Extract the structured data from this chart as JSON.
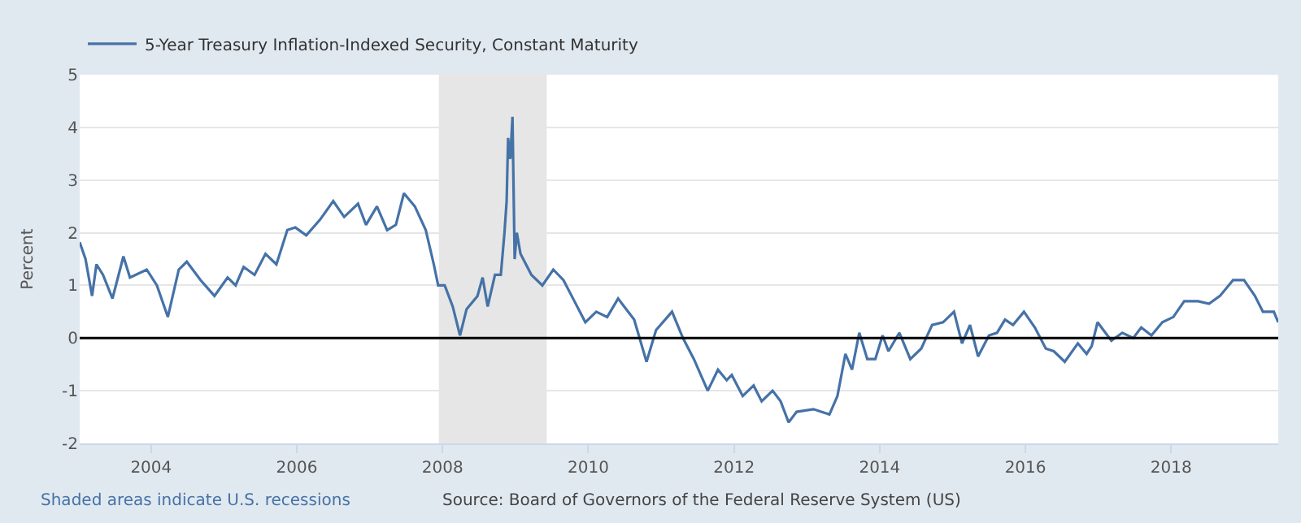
{
  "chart_data": {
    "type": "line",
    "ylabel": "Percent",
    "x": [
      2003.02,
      2003.1,
      2003.19,
      2003.25,
      2003.34,
      2003.47,
      2003.62,
      2003.71,
      2003.94,
      2004.08,
      2004.23,
      2004.38,
      2004.49,
      2004.68,
      2004.87,
      2005.05,
      2005.16,
      2005.27,
      2005.42,
      2005.57,
      2005.72,
      2005.87,
      2005.98,
      2006.13,
      2006.32,
      2006.5,
      2006.65,
      2006.84,
      2006.95,
      2007.1,
      2007.24,
      2007.36,
      2007.47,
      2007.62,
      2007.77,
      2007.88,
      2007.94,
      2008.03,
      2008.14,
      2008.24,
      2008.33,
      2008.48,
      2008.55,
      2008.62,
      2008.72,
      2008.8,
      2008.85,
      2008.88,
      2008.9,
      2008.93,
      2008.96,
      2008.99,
      2009.02,
      2009.07,
      2009.22,
      2009.37,
      2009.52,
      2009.66,
      2009.81,
      2009.96,
      2010.11,
      2010.26,
      2010.41,
      2010.63,
      2010.8,
      2010.93,
      2011.15,
      2011.3,
      2011.45,
      2011.64,
      2011.78,
      2011.9,
      2011.97,
      2012.12,
      2012.27,
      2012.38,
      2012.53,
      2012.64,
      2012.75,
      2012.86,
      2013.09,
      2013.31,
      2013.42,
      2013.53,
      2013.62,
      2013.72,
      2013.83,
      2013.94,
      2014.04,
      2014.12,
      2014.27,
      2014.42,
      2014.57,
      2014.72,
      2014.87,
      2015.02,
      2015.13,
      2015.24,
      2015.35,
      2015.5,
      2015.61,
      2015.72,
      2015.83,
      2015.98,
      2016.13,
      2016.28,
      2016.39,
      2016.54,
      2016.72,
      2016.84,
      2016.91,
      2016.99,
      2017.18,
      2017.33,
      2017.48,
      2017.59,
      2017.73,
      2017.88,
      2018.03,
      2018.18,
      2018.37,
      2018.52,
      2018.67,
      2018.85,
      2019.0,
      2019.15,
      2019.26,
      2019.41,
      2019.47
    ],
    "series": [
      {
        "name": "5-Year Treasury Inflation-Indexed Security, Constant Maturity",
        "color": "#4572a7",
        "values": [
          1.82,
          1.5,
          0.8,
          1.4,
          1.2,
          0.75,
          1.55,
          1.15,
          1.3,
          1.0,
          0.4,
          1.3,
          1.45,
          1.1,
          0.8,
          1.15,
          1.0,
          1.35,
          1.2,
          1.6,
          1.4,
          2.05,
          2.1,
          1.95,
          2.25,
          2.6,
          2.3,
          2.55,
          2.15,
          2.5,
          2.05,
          2.15,
          2.75,
          2.5,
          2.05,
          1.4,
          1.0,
          1.0,
          0.6,
          0.05,
          0.55,
          0.8,
          1.15,
          0.6,
          1.2,
          1.2,
          2.0,
          2.6,
          3.8,
          3.4,
          4.2,
          1.5,
          2.0,
          1.6,
          1.2,
          1.0,
          1.3,
          1.1,
          0.7,
          0.3,
          0.5,
          0.4,
          0.75,
          0.35,
          -0.45,
          0.15,
          0.5,
          0.0,
          -0.4,
          -1.0,
          -0.6,
          -0.8,
          -0.7,
          -1.1,
          -0.9,
          -1.2,
          -1.0,
          -1.2,
          -1.6,
          -1.4,
          -1.35,
          -1.45,
          -1.1,
          -0.3,
          -0.6,
          0.1,
          -0.4,
          -0.4,
          0.05,
          -0.25,
          0.1,
          -0.4,
          -0.2,
          0.25,
          0.3,
          0.5,
          -0.1,
          0.25,
          -0.35,
          0.05,
          0.1,
          0.35,
          0.25,
          0.5,
          0.2,
          -0.2,
          -0.25,
          -0.45,
          -0.1,
          -0.3,
          -0.15,
          0.3,
          -0.05,
          0.1,
          0.0,
          0.2,
          0.05,
          0.3,
          0.4,
          0.7,
          0.7,
          0.65,
          0.8,
          1.1,
          1.1,
          0.8,
          0.5,
          0.5,
          0.3
        ]
      }
    ],
    "xlim": [
      2003.02,
      2019.47
    ],
    "xticks": [
      2004,
      2006,
      2008,
      2010,
      2012,
      2014,
      2016,
      2018
    ],
    "ylim": [
      -2,
      5
    ],
    "yticks": [
      -2,
      -1,
      0,
      1,
      2,
      3,
      4,
      5
    ],
    "grid": "y",
    "legend": "top left",
    "marker": "none",
    "line_style": "solid",
    "ref_lines": [
      {
        "axis": "y",
        "value": 0,
        "color": "#000000",
        "line_style": "solid"
      }
    ],
    "bands": [
      {
        "axis": "x",
        "from": 2007.95,
        "to": 2009.43,
        "color": "#e6e6e6"
      }
    ],
    "annotations": [
      "Shaded areas indicate U.S. recessions",
      "Source: Board of Governors of the Federal Reserve System (US)"
    ]
  }
}
